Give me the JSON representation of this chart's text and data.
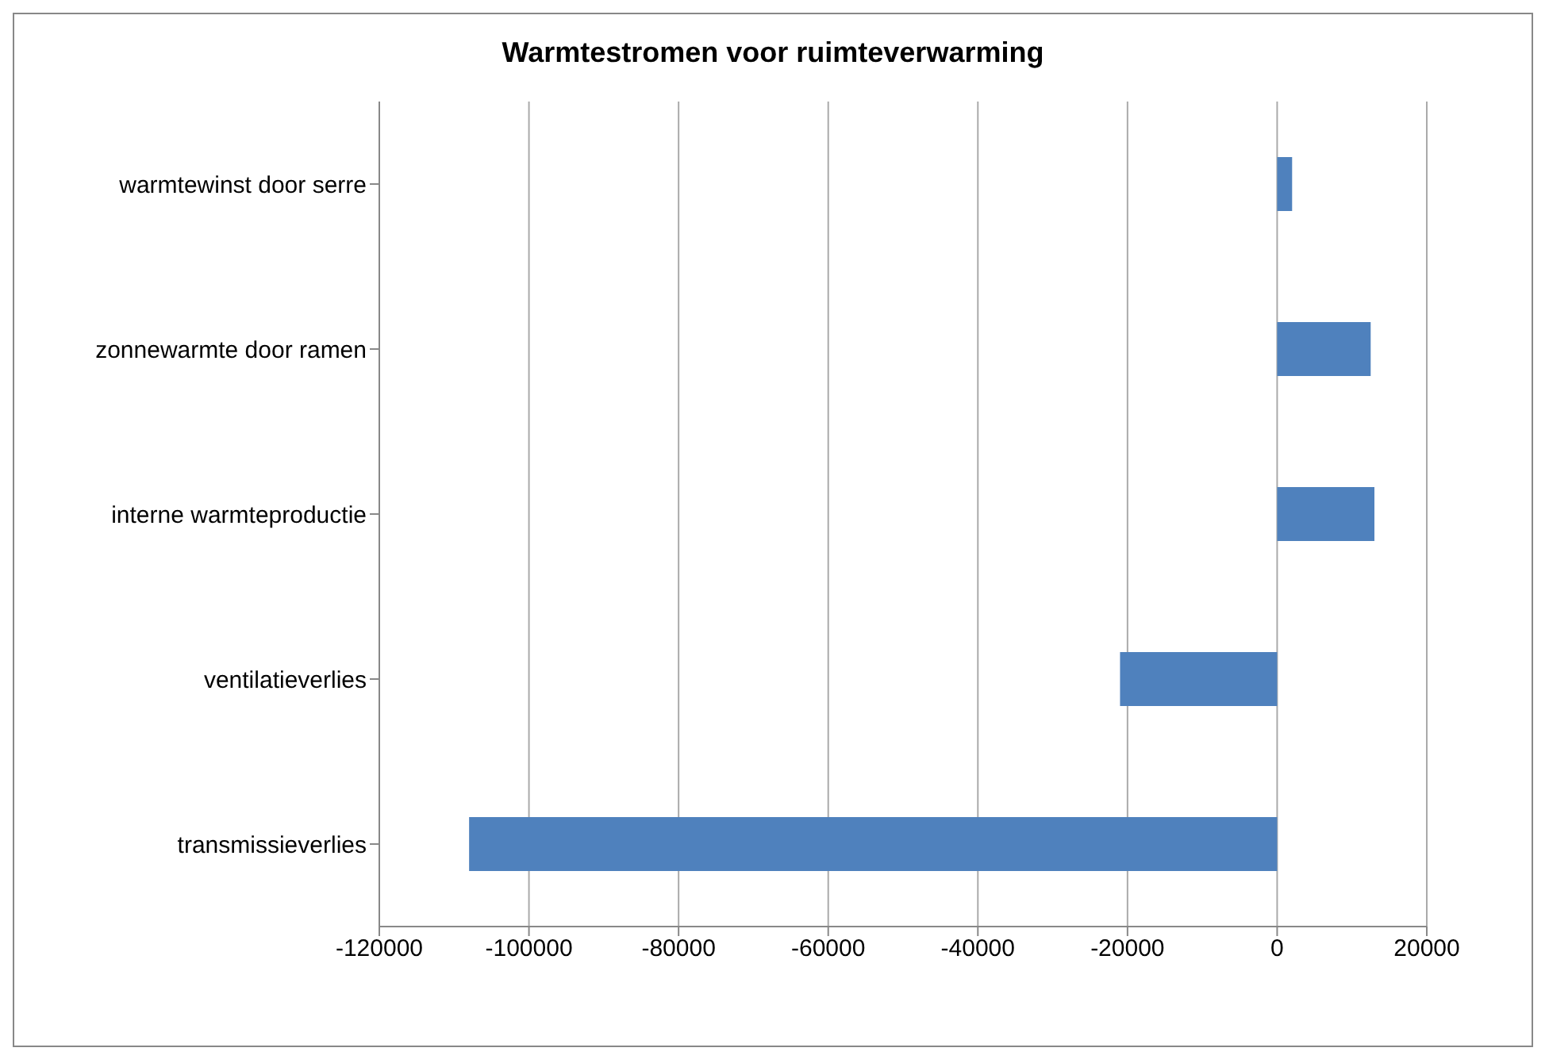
{
  "chart_data": {
    "type": "bar",
    "orientation": "horizontal",
    "title": "Warmtestromen voor ruimteverwarming",
    "categories": [
      "warmtewinst door serre",
      "zonnewarmte door ramen",
      "interne warmteproductie",
      "ventilatieverlies",
      "transmissieverlies"
    ],
    "values": [
      2000,
      12500,
      13000,
      -21000,
      -108000
    ],
    "color": "#4f81bd",
    "xlim": [
      -120000,
      20000
    ],
    "xticks": [
      -120000,
      -100000,
      -80000,
      -60000,
      -40000,
      -20000,
      0,
      20000
    ],
    "grid": "x"
  }
}
